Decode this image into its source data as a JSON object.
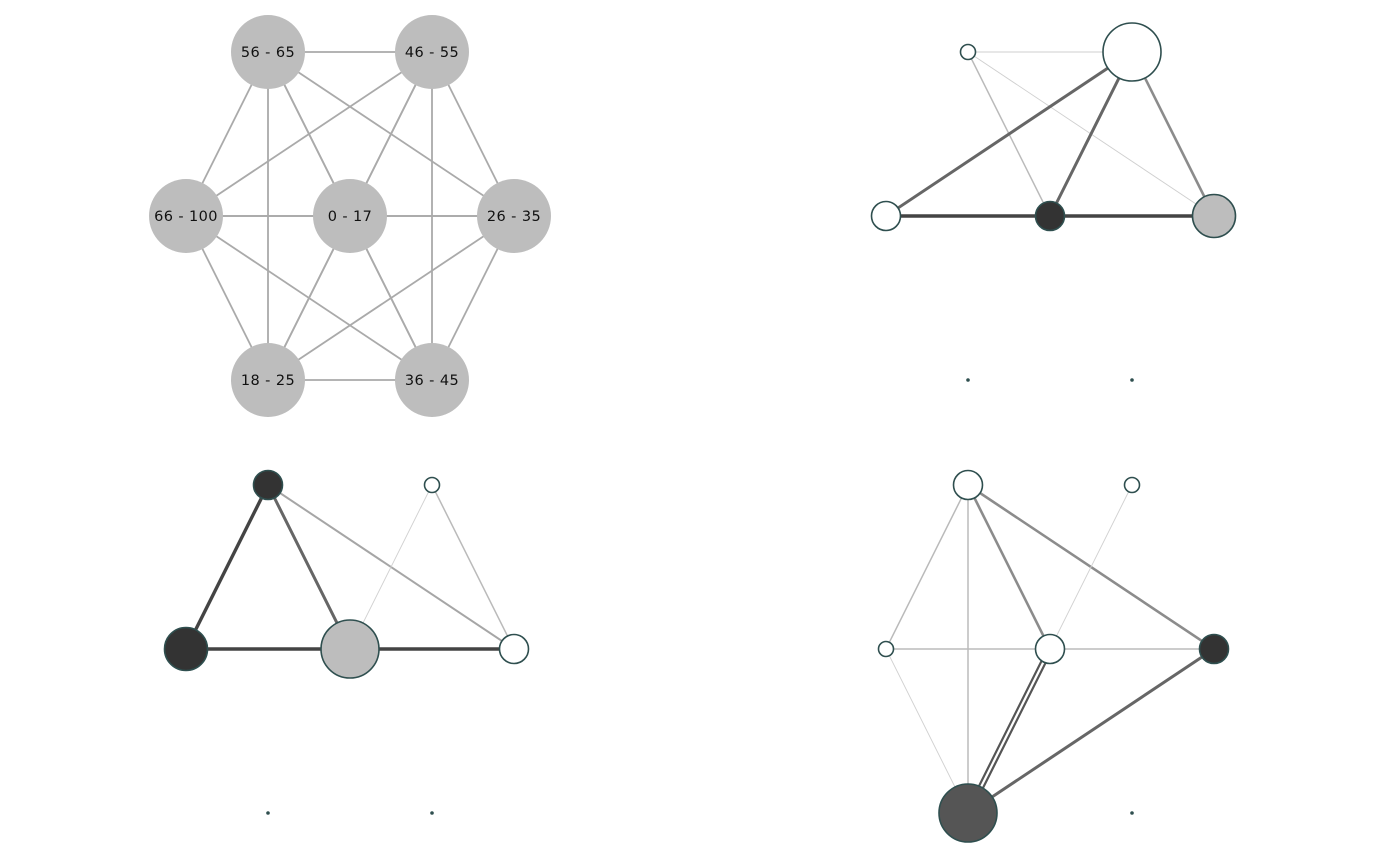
{
  "colors": {
    "background": "#ffffff",
    "key_node_fill": "#bdbdbd",
    "key_edge": "#aaaaaa",
    "node_stroke": "#2f4f4f",
    "fill_white": "#ffffff",
    "fill_grey": "#bdbdbd",
    "fill_dark": "#333333",
    "fill_darkgrey": "#555555"
  },
  "key_panel": {
    "nodes": [
      {
        "id": "56-65",
        "label": "56 - 65"
      },
      {
        "id": "46-55",
        "label": "46 - 55"
      },
      {
        "id": "66-100",
        "label": "66 - 100"
      },
      {
        "id": "0-17",
        "label": "0 - 17"
      },
      {
        "id": "26-35",
        "label": "26 - 35"
      },
      {
        "id": "18-25",
        "label": "18 - 25"
      },
      {
        "id": "36-45",
        "label": "36 - 45"
      }
    ]
  },
  "graphs": [
    {
      "name": "graph-top-right",
      "nodes": [
        {
          "id": "56-65",
          "size": "small",
          "fill": "white"
        },
        {
          "id": "46-55",
          "size": "large",
          "fill": "white"
        },
        {
          "id": "66-100",
          "size": "medium",
          "fill": "white"
        },
        {
          "id": "0-17",
          "size": "medium",
          "fill": "dark"
        },
        {
          "id": "26-35",
          "size": "large-medium",
          "fill": "grey"
        },
        {
          "id": "18-25",
          "size": "dot",
          "fill": "dark"
        },
        {
          "id": "36-45",
          "size": "dot",
          "fill": "dark"
        }
      ],
      "edges": [
        {
          "from": "56-65",
          "to": "46-55",
          "weight": "very-light"
        },
        {
          "from": "56-65",
          "to": "0-17",
          "weight": "light"
        },
        {
          "from": "56-65",
          "to": "26-35",
          "weight": "very-light"
        },
        {
          "from": "46-55",
          "to": "66-100",
          "weight": "heavy"
        },
        {
          "from": "46-55",
          "to": "0-17",
          "weight": "heavy"
        },
        {
          "from": "46-55",
          "to": "26-35",
          "weight": "medium-heavy"
        },
        {
          "from": "66-100",
          "to": "0-17",
          "weight": "very-heavy"
        },
        {
          "from": "0-17",
          "to": "26-35",
          "weight": "very-heavy"
        }
      ]
    },
    {
      "name": "graph-bottom-left",
      "nodes": [
        {
          "id": "56-65",
          "size": "medium",
          "fill": "dark"
        },
        {
          "id": "46-55",
          "size": "small",
          "fill": "white"
        },
        {
          "id": "66-100",
          "size": "large-medium",
          "fill": "dark"
        },
        {
          "id": "0-17",
          "size": "large",
          "fill": "grey"
        },
        {
          "id": "26-35",
          "size": "medium",
          "fill": "white"
        },
        {
          "id": "18-25",
          "size": "dot",
          "fill": "dark"
        },
        {
          "id": "36-45",
          "size": "dot",
          "fill": "dark"
        }
      ],
      "edges": [
        {
          "from": "56-65",
          "to": "66-100",
          "weight": "very-heavy"
        },
        {
          "from": "56-65",
          "to": "0-17",
          "weight": "heavy"
        },
        {
          "from": "56-65",
          "to": "26-35",
          "weight": "medium"
        },
        {
          "from": "46-55",
          "to": "0-17",
          "weight": "very-light"
        },
        {
          "from": "46-55",
          "to": "26-35",
          "weight": "light"
        },
        {
          "from": "66-100",
          "to": "0-17",
          "weight": "very-heavy"
        },
        {
          "from": "0-17",
          "to": "26-35",
          "weight": "very-heavy"
        }
      ]
    },
    {
      "name": "graph-bottom-right",
      "nodes": [
        {
          "id": "56-65",
          "size": "medium",
          "fill": "white"
        },
        {
          "id": "46-55",
          "size": "small",
          "fill": "white"
        },
        {
          "id": "66-100",
          "size": "small",
          "fill": "white"
        },
        {
          "id": "0-17",
          "size": "medium",
          "fill": "white"
        },
        {
          "id": "26-35",
          "size": "medium",
          "fill": "dark"
        },
        {
          "id": "18-25",
          "size": "large",
          "fill": "darkgrey"
        },
        {
          "id": "36-45",
          "size": "dot",
          "fill": "dark"
        }
      ],
      "edges": [
        {
          "from": "56-65",
          "to": "66-100",
          "weight": "light"
        },
        {
          "from": "56-65",
          "to": "0-17",
          "weight": "medium-heavy"
        },
        {
          "from": "56-65",
          "to": "26-35",
          "weight": "medium-heavy"
        },
        {
          "from": "56-65",
          "to": "18-25",
          "weight": "light"
        },
        {
          "from": "46-55",
          "to": "0-17",
          "weight": "very-light"
        },
        {
          "from": "66-100",
          "to": "0-17",
          "weight": "light"
        },
        {
          "from": "66-100",
          "to": "18-25",
          "weight": "very-light"
        },
        {
          "from": "0-17",
          "to": "26-35",
          "weight": "light"
        },
        {
          "from": "0-17",
          "to": "18-25",
          "weight": "double-heavy"
        },
        {
          "from": "26-35",
          "to": "18-25",
          "weight": "heavy"
        }
      ]
    }
  ]
}
